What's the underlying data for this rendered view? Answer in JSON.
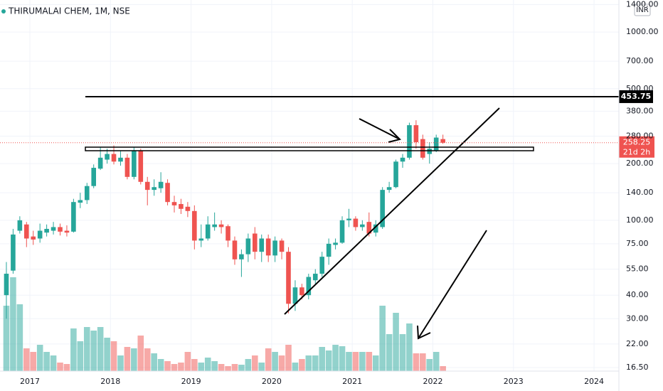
{
  "chart_data": {
    "type": "candlestick",
    "title": "THIRUMALAI CHEM, 1M, NSE",
    "currency": "INR",
    "log_scale": true,
    "grid": true,
    "ylim": [
      15.8,
      1480
    ],
    "yticks": [
      {
        "value": 1400,
        "label": "1400.00"
      },
      {
        "value": 1000,
        "label": "1000.00"
      },
      {
        "value": 700,
        "label": "700.00"
      },
      {
        "value": 500,
        "label": "500.00"
      },
      {
        "value": 380,
        "label": "380.00"
      },
      {
        "value": 280,
        "label": "280.00"
      },
      {
        "value": 200,
        "label": "200.00"
      },
      {
        "value": 140,
        "label": "140.00"
      },
      {
        "value": 100,
        "label": "100.00"
      },
      {
        "value": 75,
        "label": "75.00"
      },
      {
        "value": 55,
        "label": "55.00"
      },
      {
        "value": 40,
        "label": "40.00"
      },
      {
        "value": 30,
        "label": "30.00"
      },
      {
        "value": 22,
        "label": "22.00"
      },
      {
        "value": 16.5,
        "label": "16.50"
      }
    ],
    "xlim": [
      -0.95,
      91.2
    ],
    "xticks": [
      {
        "value": 3.5,
        "label": "2017"
      },
      {
        "value": 15.5,
        "label": "2018"
      },
      {
        "value": 27.5,
        "label": "2019"
      },
      {
        "value": 39.5,
        "label": "2020"
      },
      {
        "value": 51.5,
        "label": "2021"
      },
      {
        "value": 63.5,
        "label": "2022"
      },
      {
        "value": 75.5,
        "label": "2023"
      },
      {
        "value": 87.5,
        "label": "2024"
      }
    ],
    "up_color": "#26a69a",
    "down_color": "#ef5350",
    "open": [
      40,
      54,
      88,
      95,
      82,
      80,
      86,
      88,
      92,
      88,
      87,
      124,
      128,
      152,
      188,
      210,
      225,
      205,
      215,
      170,
      235,
      160,
      145,
      148,
      158,
      125,
      122,
      118,
      112,
      78,
      80,
      92,
      95,
      93,
      78,
      62,
      66,
      85,
      68,
      80,
      65,
      78,
      68,
      36,
      44,
      40,
      48,
      52,
      64,
      74,
      76,
      100,
      102,
      92,
      98,
      86,
      92,
      145,
      150,
      205,
      215,
      320,
      270,
      225,
      235,
      270
    ],
    "high": [
      60,
      90,
      105,
      98,
      88,
      96,
      95,
      98,
      96,
      94,
      130,
      140,
      158,
      198,
      245,
      240,
      250,
      235,
      225,
      245,
      240,
      170,
      165,
      180,
      165,
      135,
      130,
      125,
      120,
      95,
      105,
      110,
      100,
      95,
      82,
      70,
      85,
      92,
      84,
      84,
      82,
      80,
      72,
      48,
      46,
      52,
      55,
      68,
      80,
      80,
      105,
      115,
      105,
      100,
      110,
      100,
      150,
      160,
      210,
      225,
      330,
      340,
      285,
      260,
      285,
      285
    ],
    "low": [
      30,
      52,
      85,
      72,
      74,
      76,
      82,
      84,
      83,
      82,
      86,
      116,
      122,
      148,
      185,
      200,
      198,
      195,
      165,
      165,
      155,
      120,
      135,
      140,
      120,
      110,
      108,
      104,
      70,
      72,
      78,
      88,
      85,
      72,
      58,
      50,
      60,
      62,
      60,
      60,
      60,
      62,
      32,
      33,
      38,
      38,
      46,
      50,
      58,
      70,
      75,
      92,
      88,
      88,
      82,
      82,
      90,
      140,
      148,
      190,
      210,
      240,
      210,
      200,
      230,
      255
    ],
    "close": [
      52,
      84,
      100,
      80,
      79,
      88,
      90,
      92,
      87,
      86,
      125,
      128,
      152,
      190,
      215,
      225,
      205,
      215,
      170,
      235,
      160,
      145,
      150,
      160,
      125,
      120,
      115,
      112,
      78,
      80,
      95,
      95,
      92,
      78,
      62,
      66,
      80,
      68,
      80,
      65,
      78,
      68,
      36,
      44,
      40,
      50,
      52,
      64,
      75,
      76,
      100,
      102,
      92,
      95,
      85,
      95,
      145,
      150,
      205,
      215,
      320,
      260,
      215,
      240,
      275,
      258.25
    ],
    "volume": [
      92,
      132,
      94,
      32,
      27,
      37,
      27,
      22,
      12,
      10,
      60,
      42,
      62,
      57,
      62,
      47,
      42,
      22,
      34,
      32,
      50,
      32,
      25,
      17,
      14,
      10,
      12,
      27,
      17,
      12,
      19,
      14,
      10,
      7,
      10,
      9,
      17,
      22,
      12,
      32,
      27,
      22,
      37,
      12,
      17,
      22,
      22,
      34,
      29,
      37,
      35,
      27,
      27,
      27,
      27,
      22,
      92,
      52,
      82,
      52,
      67,
      25,
      25,
      17,
      27,
      7
    ],
    "horizontal_level": 453.75,
    "last_price": 258.25,
    "countdown": "21d 2h"
  }
}
